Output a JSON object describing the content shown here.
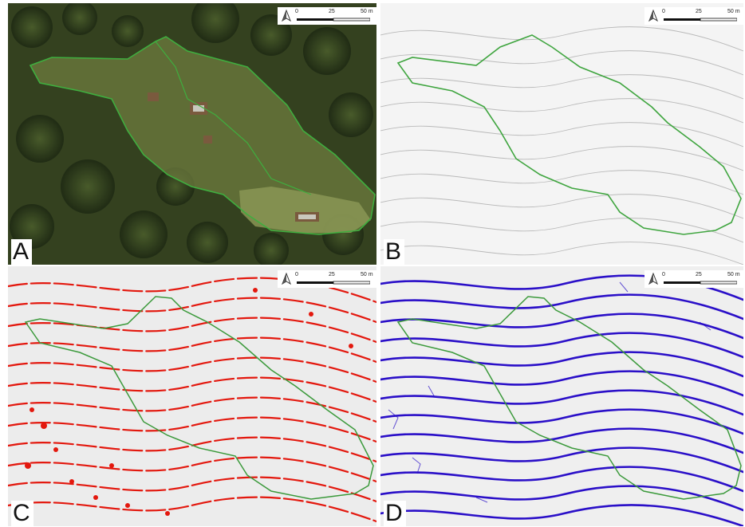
{
  "panels": [
    {
      "id": "A",
      "label": "A"
    },
    {
      "id": "B",
      "label": "B"
    },
    {
      "id": "C",
      "label": "C"
    },
    {
      "id": "D",
      "label": "D"
    }
  ],
  "scale_bar": {
    "ticks": [
      "0",
      "25",
      "50 m"
    ]
  },
  "colors": {
    "boundary": "#3c9a3c",
    "aerial_canopy": "#2f3b20",
    "hillshade": "#f2f2f2",
    "panel_c_lines": "#e11a10",
    "panel_d_lines": "#2a10c8"
  },
  "icons": {
    "north": "north-arrow-icon"
  }
}
